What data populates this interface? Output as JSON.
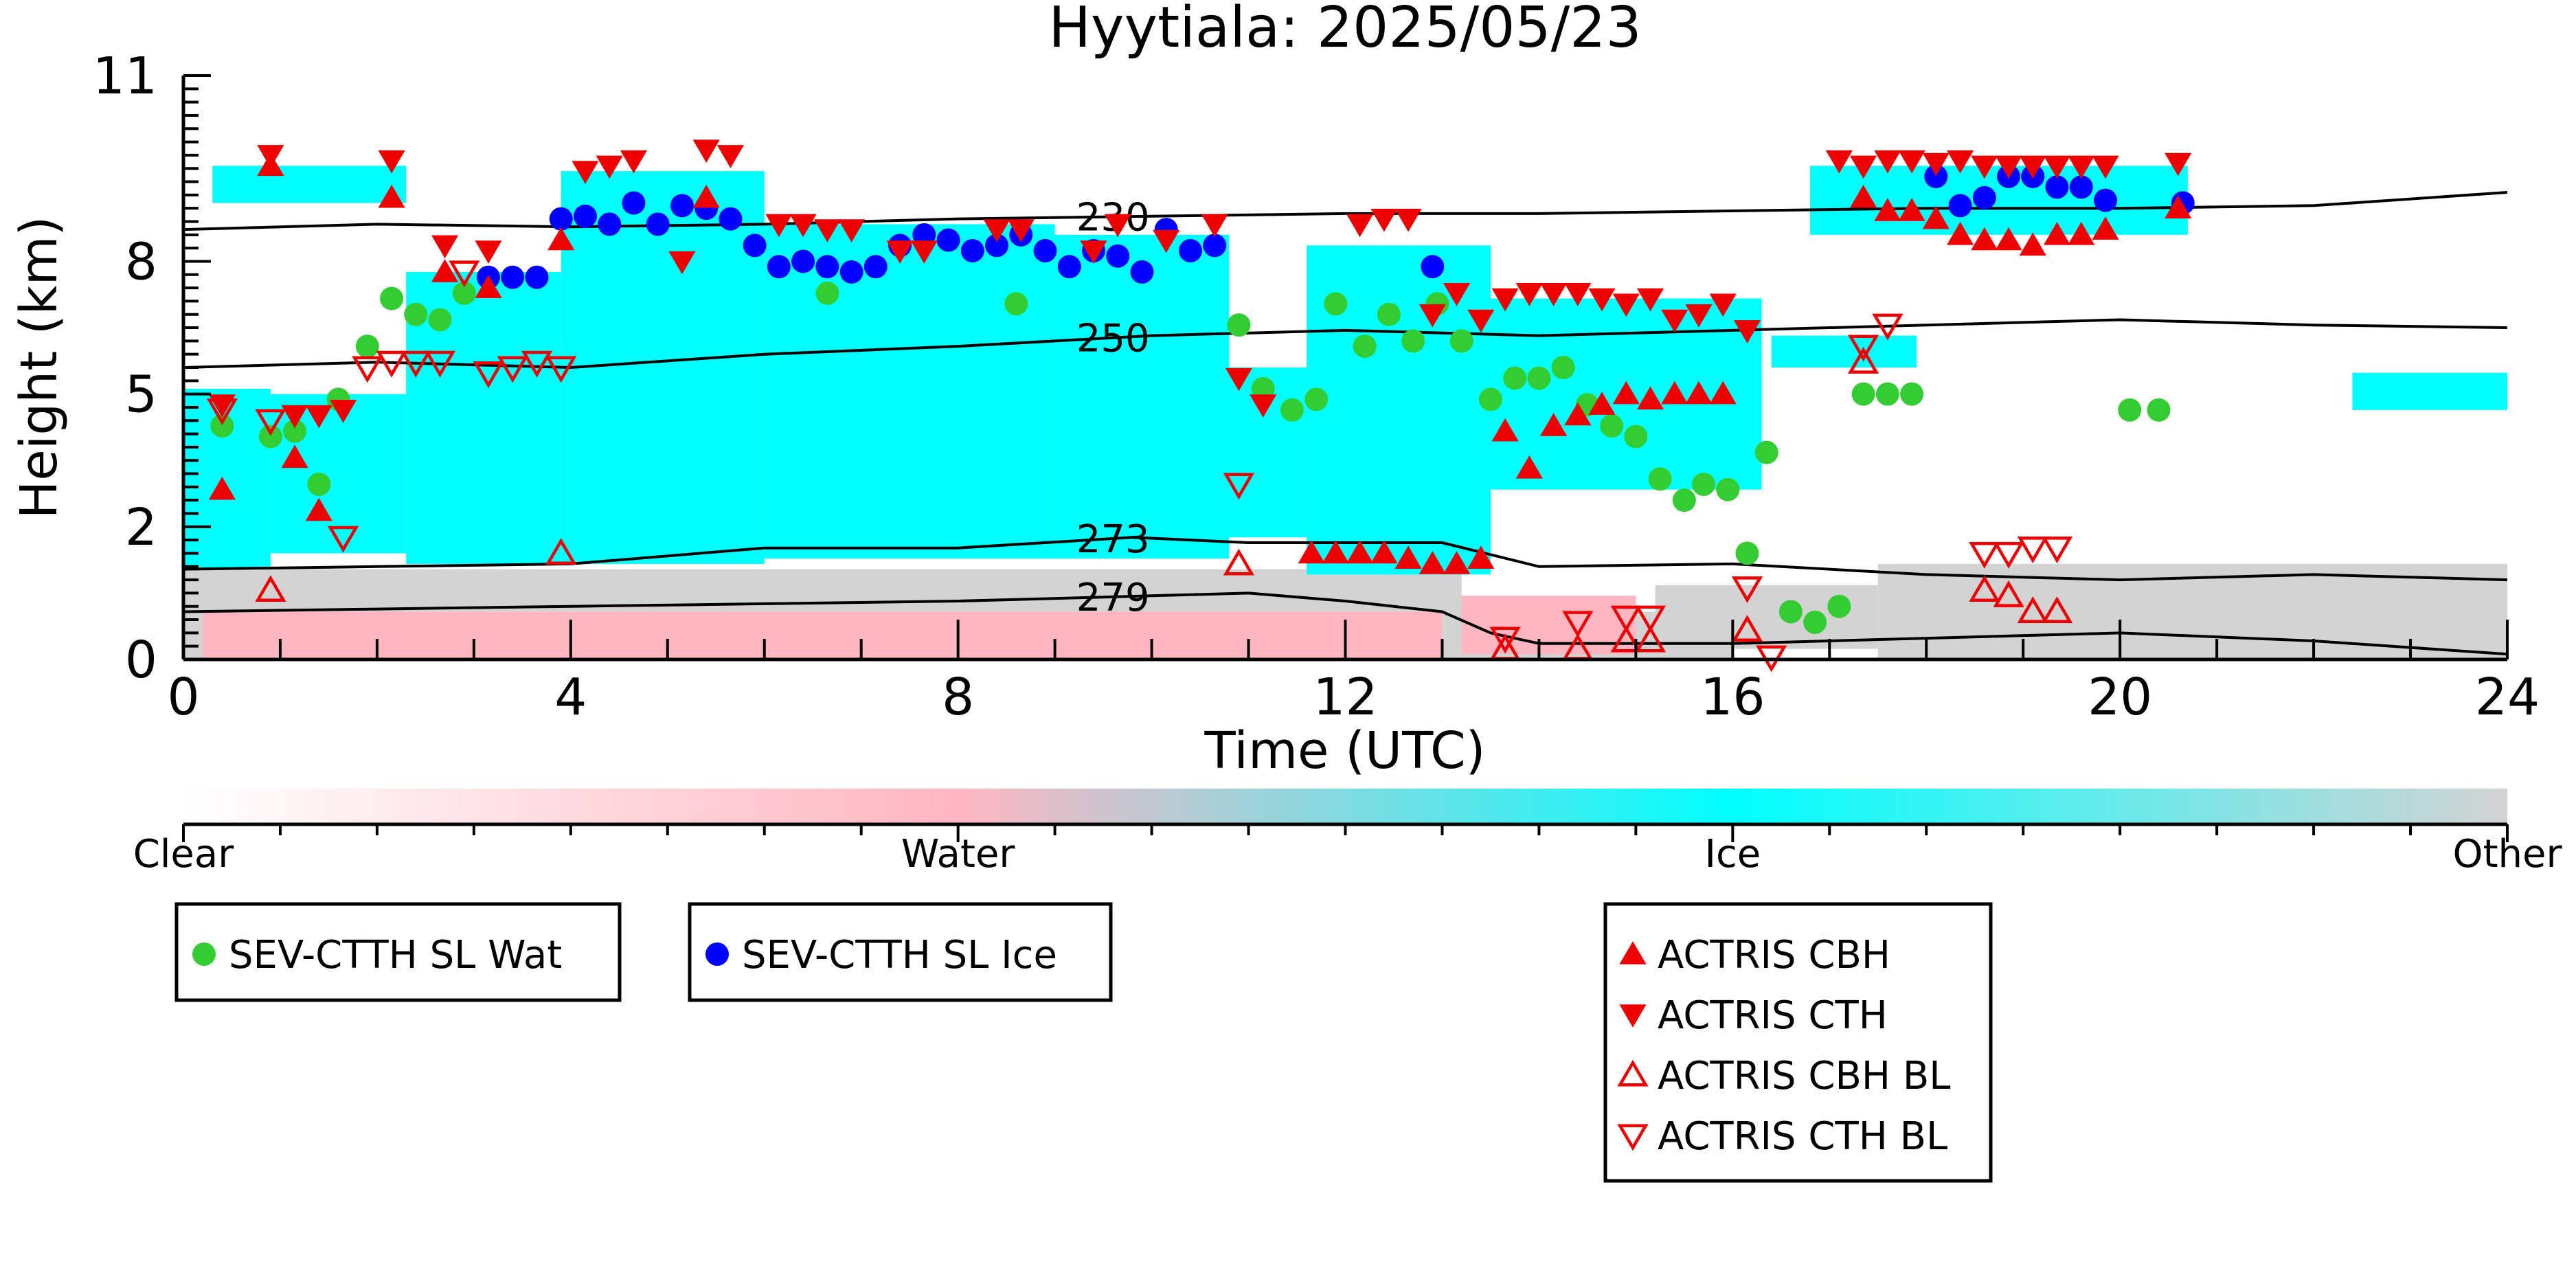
{
  "chart_data": {
    "type": "scatter",
    "title": "Hyytiala: 2025/05/23",
    "xlabel": "Time (UTC)",
    "ylabel": "Height (km)",
    "xlim": [
      0,
      24
    ],
    "ylim": [
      0,
      11
    ],
    "x_ticks": [
      0,
      4,
      8,
      12,
      16,
      20,
      24
    ],
    "x_tick_labels": [
      "0",
      "4",
      "8",
      "12",
      "16",
      "20",
      "24"
    ],
    "y_ticks": [
      0,
      2.5,
      5,
      7.5,
      11
    ],
    "y_tick_labels": [
      "0",
      "2",
      "5",
      "8",
      "11"
    ],
    "colorbar": {
      "labels": [
        "Clear",
        "Water",
        "Ice",
        "Other"
      ],
      "colors": [
        "#ffffff",
        "#ffb6c1",
        "#00ffff",
        "#d3d3d3"
      ]
    },
    "cloud_background": {
      "ice_regions": [
        {
          "t0": 0.0,
          "t1": 0.9,
          "h0": 1.7,
          "h1": 5.1
        },
        {
          "t0": 0.9,
          "t1": 2.3,
          "h0": 2.0,
          "h1": 5.0
        },
        {
          "t0": 0.3,
          "t1": 2.3,
          "h0": 8.6,
          "h1": 9.3
        },
        {
          "t0": 2.3,
          "t1": 3.9,
          "h0": 1.8,
          "h1": 7.3
        },
        {
          "t0": 3.9,
          "t1": 6.0,
          "h0": 1.8,
          "h1": 9.2
        },
        {
          "t0": 6.0,
          "t1": 9.0,
          "h0": 1.9,
          "h1": 8.2
        },
        {
          "t0": 9.0,
          "t1": 10.8,
          "h0": 1.9,
          "h1": 8.0
        },
        {
          "t0": 10.2,
          "t1": 11.6,
          "h0": 2.3,
          "h1": 5.5
        },
        {
          "t0": 11.6,
          "t1": 13.5,
          "h0": 1.6,
          "h1": 7.8
        },
        {
          "t0": 13.3,
          "t1": 16.3,
          "h0": 3.2,
          "h1": 6.8
        },
        {
          "t0": 16.4,
          "t1": 17.9,
          "h0": 5.5,
          "h1": 6.1
        },
        {
          "t0": 16.8,
          "t1": 20.7,
          "h0": 8.0,
          "h1": 9.3
        },
        {
          "t0": 22.4,
          "t1": 24.0,
          "h0": 4.7,
          "h1": 5.4
        }
      ],
      "other_regions": [
        {
          "t0": 0.0,
          "t1": 13.2,
          "h0": 0.0,
          "h1": 1.7
        },
        {
          "t0": 13.2,
          "t1": 16.0,
          "h0": 0.0,
          "h1": 0.9
        },
        {
          "t0": 15.2,
          "t1": 17.5,
          "h0": 0.2,
          "h1": 1.4
        },
        {
          "t0": 17.5,
          "t1": 24.0,
          "h0": 0.0,
          "h1": 1.8
        }
      ],
      "water_regions": [
        {
          "t0": 0.2,
          "t1": 13.0,
          "h0": 0.0,
          "h1": 0.9
        },
        {
          "t0": 13.2,
          "t1": 15.0,
          "h0": 0.1,
          "h1": 1.2
        }
      ]
    },
    "contours": [
      {
        "label": "230",
        "label_x": 9.6,
        "x": [
          0,
          2,
          4,
          6,
          8,
          10,
          12,
          14,
          16,
          18,
          20,
          22,
          24
        ],
        "y": [
          8.1,
          8.2,
          8.15,
          8.2,
          8.3,
          8.35,
          8.4,
          8.4,
          8.45,
          8.5,
          8.5,
          8.55,
          8.8
        ]
      },
      {
        "label": "250",
        "label_x": 9.6,
        "x": [
          0,
          2,
          4,
          6,
          8,
          10,
          12,
          14,
          16,
          18,
          20,
          22,
          24
        ],
        "y": [
          5.5,
          5.6,
          5.5,
          5.75,
          5.9,
          6.1,
          6.2,
          6.1,
          6.2,
          6.3,
          6.4,
          6.3,
          6.25
        ]
      },
      {
        "label": "273",
        "label_x": 9.6,
        "x": [
          0,
          2,
          4,
          6,
          8,
          9.8,
          11,
          13,
          14,
          16,
          18,
          20,
          22,
          24
        ],
        "y": [
          1.7,
          1.75,
          1.8,
          2.1,
          2.1,
          2.3,
          2.2,
          2.2,
          1.75,
          1.8,
          1.6,
          1.5,
          1.6,
          1.5
        ]
      },
      {
        "label": "279",
        "label_x": 9.6,
        "x": [
          0,
          2,
          4,
          6,
          8,
          10,
          11,
          12,
          13,
          13.5,
          14,
          16,
          18,
          20,
          22,
          24
        ],
        "y": [
          0.9,
          0.95,
          1.0,
          1.05,
          1.1,
          1.2,
          1.25,
          1.1,
          0.9,
          0.5,
          0.3,
          0.3,
          0.4,
          0.5,
          0.35,
          0.1
        ]
      }
    ],
    "series": [
      {
        "name": "SEV-CTTH SL Wat",
        "marker": "circle",
        "color": "#33cc33",
        "x": [
          0.4,
          0.9,
          1.15,
          1.4,
          1.6,
          1.9,
          2.15,
          2.4,
          2.65,
          2.9,
          6.65,
          8.6,
          10.9,
          11.15,
          11.45,
          11.7,
          11.9,
          12.2,
          12.45,
          12.7,
          12.95,
          13.2,
          13.5,
          13.75,
          14.0,
          14.25,
          14.5,
          14.75,
          15.0,
          15.25,
          15.5,
          15.7,
          15.95,
          16.15,
          16.35,
          16.6,
          16.85,
          17.1,
          17.35,
          17.6,
          17.85,
          20.1,
          20.4
        ],
        "y": [
          4.4,
          4.2,
          4.3,
          3.3,
          4.9,
          5.9,
          6.8,
          6.5,
          6.4,
          6.9,
          6.9,
          6.7,
          6.3,
          5.1,
          4.7,
          4.9,
          6.7,
          5.9,
          6.5,
          6.0,
          6.7,
          6.0,
          4.9,
          5.3,
          5.3,
          5.5,
          4.8,
          4.4,
          4.2,
          3.4,
          3.0,
          3.3,
          3.2,
          2.0,
          3.9,
          0.9,
          0.7,
          1.0,
          5.0,
          5.0,
          5.0,
          4.7,
          4.7
        ]
      },
      {
        "name": "SEV-CTTH SL Ice",
        "marker": "circle",
        "color": "#0000ff",
        "x": [
          3.15,
          3.4,
          3.65,
          3.9,
          4.15,
          4.4,
          4.65,
          4.9,
          5.15,
          5.4,
          5.65,
          5.9,
          6.15,
          6.4,
          6.65,
          6.9,
          7.15,
          7.4,
          7.65,
          7.9,
          8.15,
          8.4,
          8.65,
          8.9,
          9.15,
          9.4,
          9.65,
          9.9,
          10.15,
          10.4,
          10.65,
          12.9,
          18.1,
          18.35,
          18.6,
          18.85,
          19.1,
          19.35,
          19.6,
          19.85,
          20.65
        ],
        "y": [
          7.2,
          7.2,
          7.2,
          8.3,
          8.35,
          8.2,
          8.6,
          8.2,
          8.55,
          8.5,
          8.3,
          7.8,
          7.4,
          7.5,
          7.4,
          7.3,
          7.4,
          7.8,
          8.0,
          7.9,
          7.7,
          7.8,
          8.0,
          7.7,
          7.4,
          7.7,
          7.6,
          7.3,
          8.1,
          7.7,
          7.8,
          7.4,
          9.1,
          8.55,
          8.7,
          9.1,
          9.1,
          8.9,
          8.9,
          8.65,
          8.6
        ]
      },
      {
        "name": "ACTRIS CBH",
        "marker": "triangle-up",
        "color": "#ee0000",
        "x": [
          0.4,
          0.9,
          1.15,
          1.4,
          2.15,
          2.7,
          3.15,
          3.9,
          5.4,
          11.65,
          11.9,
          12.15,
          12.4,
          12.65,
          12.9,
          13.15,
          13.4,
          13.65,
          13.9,
          14.15,
          14.4,
          14.65,
          14.9,
          15.15,
          15.4,
          15.65,
          15.9,
          17.35,
          17.6,
          17.85,
          18.1,
          18.35,
          18.6,
          18.85,
          19.1,
          19.35,
          19.6,
          19.85,
          20.6
        ],
        "y": [
          3.2,
          9.3,
          3.8,
          2.8,
          8.7,
          7.3,
          7.0,
          7.9,
          8.7,
          2.0,
          2.0,
          2.0,
          2.0,
          1.9,
          1.8,
          1.8,
          1.9,
          4.3,
          3.6,
          4.4,
          4.6,
          4.8,
          5.0,
          4.9,
          5.0,
          5.0,
          5.0,
          8.7,
          8.45,
          8.45,
          8.3,
          8.0,
          7.9,
          7.9,
          7.8,
          8.0,
          8.0,
          8.1,
          8.5
        ]
      },
      {
        "name": "ACTRIS CTH",
        "marker": "triangle-down",
        "color": "#ee0000",
        "x": [
          0.4,
          0.9,
          1.15,
          1.4,
          1.65,
          2.15,
          2.7,
          3.15,
          4.15,
          4.4,
          4.65,
          5.15,
          5.4,
          5.65,
          6.15,
          6.4,
          6.65,
          6.9,
          7.4,
          7.65,
          8.4,
          8.65,
          9.4,
          9.65,
          10.15,
          10.65,
          10.9,
          11.15,
          12.15,
          12.4,
          12.65,
          12.9,
          13.15,
          13.4,
          13.65,
          13.9,
          14.15,
          14.4,
          14.65,
          14.9,
          15.15,
          15.4,
          15.65,
          15.9,
          16.15,
          17.1,
          17.35,
          17.6,
          17.85,
          18.1,
          18.35,
          18.6,
          18.85,
          19.1,
          19.35,
          19.6,
          19.85,
          20.6
        ],
        "y": [
          4.8,
          9.5,
          4.6,
          4.6,
          4.7,
          9.4,
          7.8,
          7.7,
          9.2,
          9.3,
          9.4,
          7.5,
          9.6,
          9.5,
          8.2,
          8.2,
          8.1,
          8.1,
          7.7,
          7.7,
          8.1,
          8.1,
          7.7,
          8.2,
          7.9,
          8.2,
          5.3,
          4.8,
          8.2,
          8.3,
          8.3,
          6.5,
          6.9,
          6.4,
          6.8,
          6.9,
          6.9,
          6.9,
          6.8,
          6.7,
          6.8,
          6.4,
          6.5,
          6.7,
          6.2,
          9.4,
          9.3,
          9.4,
          9.4,
          9.35,
          9.4,
          9.3,
          9.3,
          9.3,
          9.3,
          9.3,
          9.3,
          9.35
        ]
      },
      {
        "name": "ACTRIS CBH BL",
        "marker": "triangle-up-open",
        "color": "#ee0000",
        "x": [
          0.9,
          3.9,
          10.9,
          13.65,
          14.4,
          14.9,
          15.15,
          16.15,
          17.35,
          18.6,
          18.85,
          19.1,
          19.35
        ],
        "y": [
          1.3,
          2.0,
          1.8,
          0.2,
          0.2,
          0.35,
          0.35,
          0.55,
          5.6,
          1.3,
          1.2,
          0.9,
          0.9
        ]
      },
      {
        "name": "ACTRIS CTH BL",
        "marker": "triangle-down-open",
        "color": "#ee0000",
        "x": [
          0.4,
          0.9,
          1.65,
          1.9,
          2.15,
          2.4,
          2.65,
          2.9,
          3.15,
          3.4,
          3.65,
          3.9,
          10.9,
          13.65,
          14.4,
          14.9,
          15.15,
          16.15,
          16.4,
          17.35,
          17.6,
          18.6,
          18.85,
          19.1,
          19.35
        ],
        "y": [
          4.7,
          4.5,
          2.3,
          5.5,
          5.6,
          5.6,
          5.6,
          7.3,
          5.4,
          5.5,
          5.6,
          5.5,
          3.3,
          0.4,
          0.7,
          0.8,
          0.8,
          1.35,
          0.05,
          5.9,
          6.3,
          2.0,
          2.0,
          2.1,
          2.1
        ]
      }
    ],
    "legend": {
      "groups": [
        [
          "SEV-CTTH SL Wat"
        ],
        [
          "SEV-CTTH SL Ice"
        ],
        [
          "ACTRIS CBH",
          "ACTRIS CTH",
          "ACTRIS CBH BL",
          "ACTRIS CTH BL"
        ]
      ]
    }
  }
}
